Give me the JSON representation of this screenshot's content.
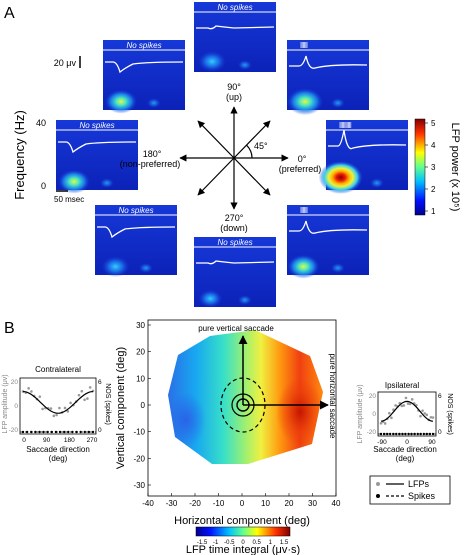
{
  "panel_a": {
    "label": "A",
    "no_spikes": "No spikes",
    "scale_uv": "20 μv",
    "y_label": "Frequency (Hz)",
    "y_tick_top": "40",
    "y_tick_bottom": "0",
    "time_scale": "50 msec",
    "colorbar": {
      "label": "LFP power (x 10⁵)",
      "ticks": [
        "5",
        "4",
        "3",
        "2",
        "1"
      ]
    },
    "directions": {
      "up_deg": "90°",
      "up": "(up)",
      "left_deg": "180°",
      "left": "(non-preferred)",
      "right_deg": "0°",
      "right": "(preferred)",
      "down_deg": "270°",
      "down": "(down)",
      "angle": "45°"
    }
  },
  "panel_b": {
    "label": "B",
    "contralateral": {
      "title": "Contralateral",
      "ylabel_left": "LFP amplitude (μv)",
      "ylabel_right": "NOS (spikes)",
      "xlabel_1": "Saccade direction",
      "xlabel_2": "(deg)",
      "xticks": [
        "0",
        "90",
        "180",
        "270"
      ],
      "yticks_left": [
        "20",
        "0",
        "-20"
      ],
      "yticks_right": [
        "6",
        "0"
      ]
    },
    "ipsilateral": {
      "title": "Ipsilateral",
      "ylabel_left": "LFP amplitude (μv)",
      "ylabel_right": "NOS (spikes)",
      "xlabel_1": "Saccade direction",
      "xlabel_2": "(deg)",
      "xticks": [
        "-90",
        "0",
        "90"
      ],
      "yticks_left": [
        "20",
        "0",
        "-20"
      ],
      "yticks_right": [
        "6",
        "0"
      ]
    },
    "map": {
      "ylabel": "Vertical component (deg)",
      "xlabel": "Horizontal component (deg)",
      "xticks": [
        "-40",
        "-30",
        "-20",
        "-10",
        "0",
        "10",
        "20",
        "30",
        "40"
      ],
      "yticks": [
        "30",
        "20",
        "10",
        "0",
        "-10",
        "-20",
        "-30"
      ],
      "vertical_label": "pure vertical saccade",
      "horizontal_label": "pure horizontal saccade"
    },
    "colorbar": {
      "label": "LFP time integral (μv·s)",
      "ticks": [
        "-1.5",
        "-1",
        "-0.5",
        "0",
        "0.5",
        "1",
        "1.5"
      ]
    },
    "legend": {
      "lfps": "LFPs",
      "spikes": "Spikes"
    }
  }
}
